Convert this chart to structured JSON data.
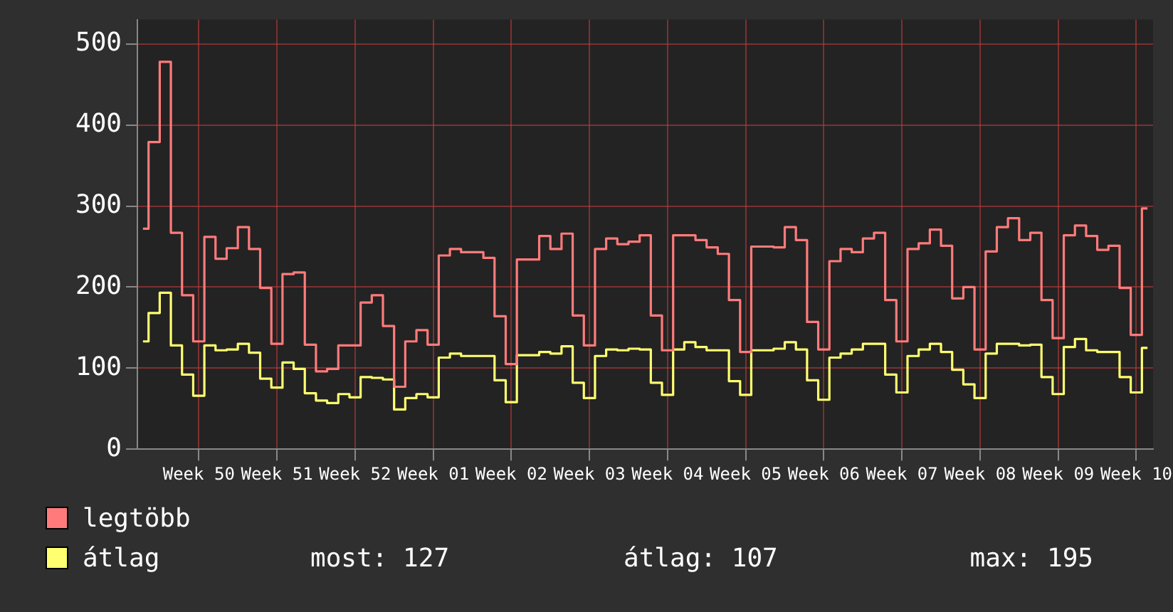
{
  "chart_data": {
    "type": "step",
    "categories": [
      null,
      null,
      null,
      null,
      null,
      "Week 50",
      null,
      null,
      null,
      null,
      null,
      null,
      "Week 51",
      null,
      null,
      null,
      null,
      null,
      null,
      "Week 52",
      null,
      null,
      null,
      null,
      null,
      null,
      "Week 01",
      null,
      null,
      null,
      null,
      null,
      null,
      "Week 02",
      null,
      null,
      null,
      null,
      null,
      null,
      "Week 03",
      null,
      null,
      null,
      null,
      null,
      null,
      "Week 04",
      null,
      null,
      null,
      null,
      null,
      null,
      "Week 05",
      null,
      null,
      null,
      null,
      null,
      null,
      "Week 06",
      null,
      null,
      null,
      null,
      null,
      null,
      "Week 07",
      null,
      null,
      null,
      null,
      null,
      null,
      "Week 08",
      null,
      null,
      null,
      null,
      null,
      null,
      "Week 09",
      null,
      null,
      null,
      null,
      null,
      null,
      "Week 10",
      null
    ],
    "series": [
      {
        "name": "legtöbb",
        "color": "#ff7b7b",
        "values": [
          272,
          379,
          478,
          267,
          190,
          133,
          262,
          235,
          248,
          274,
          247,
          199,
          130,
          216,
          218,
          129,
          96,
          99,
          128,
          128,
          181,
          190,
          152,
          77,
          133,
          147,
          129,
          239,
          247,
          243,
          243,
          236,
          164,
          105,
          234,
          234,
          263,
          247,
          266,
          165,
          128,
          247,
          260,
          253,
          256,
          264,
          165,
          122,
          264,
          264,
          258,
          249,
          241,
          184,
          120,
          250,
          250,
          249,
          274,
          258,
          157,
          123,
          232,
          247,
          243,
          260,
          267,
          184,
          133,
          247,
          254,
          271,
          251,
          186,
          200,
          123,
          244,
          274,
          285,
          258,
          267,
          184,
          137,
          264,
          276,
          263,
          246,
          251,
          199,
          141,
          297
        ]
      },
      {
        "name": "átlag",
        "color": "#ffff70",
        "values": [
          133,
          168,
          193,
          128,
          92,
          66,
          128,
          122,
          123,
          130,
          119,
          87,
          76,
          107,
          99,
          69,
          60,
          57,
          68,
          64,
          89,
          88,
          86,
          49,
          63,
          68,
          64,
          113,
          118,
          115,
          115,
          115,
          85,
          58,
          116,
          116,
          120,
          118,
          127,
          82,
          63,
          115,
          123,
          122,
          124,
          123,
          82,
          67,
          123,
          132,
          126,
          122,
          122,
          84,
          67,
          122,
          122,
          124,
          132,
          123,
          85,
          61,
          113,
          118,
          123,
          130,
          130,
          92,
          70,
          115,
          123,
          130,
          120,
          98,
          80,
          63,
          118,
          130,
          130,
          128,
          129,
          89,
          68,
          126,
          136,
          122,
          120,
          120,
          89,
          70,
          125
        ]
      }
    ],
    "ylim": [
      0,
      530
    ],
    "yticks": [
      0,
      100,
      200,
      300,
      400,
      500
    ],
    "grid": true,
    "legend": "bottom left",
    "annotations": [
      "most: 127",
      "átlag: 107",
      "max: 195"
    ]
  }
}
